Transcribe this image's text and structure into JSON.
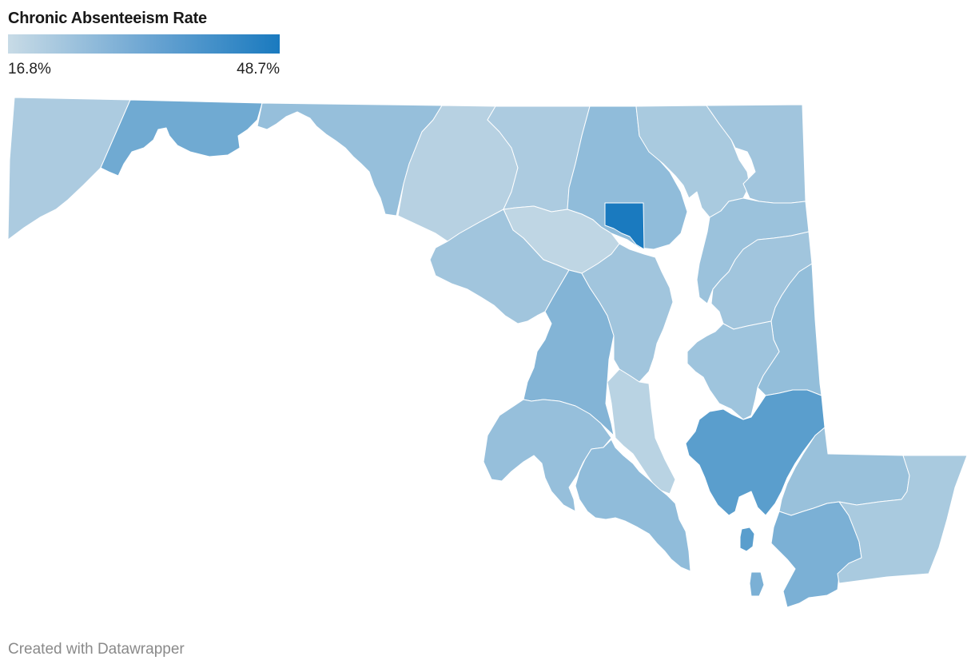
{
  "title": "Chronic Absenteeism Rate",
  "legend": {
    "min_label": "16.8%",
    "max_label": "48.7%",
    "min_value": 16.8,
    "max_value": 48.7,
    "min_color": "#c8dbe6",
    "max_color": "#1a7abf"
  },
  "footer": {
    "credit": "Created with Datawrapper"
  },
  "chart_data": {
    "type": "choropleth",
    "title": "Chronic Absenteeism Rate",
    "metric": "Chronic Absenteeism Rate",
    "unit": "%",
    "range": [
      16.8,
      48.7
    ],
    "regions": [
      {
        "id": "garrett",
        "value": 22.0
      },
      {
        "id": "allegany",
        "value": 33.0
      },
      {
        "id": "washington",
        "value": 26.0
      },
      {
        "id": "frederick",
        "value": 20.0
      },
      {
        "id": "carroll",
        "value": 22.0
      },
      {
        "id": "baltimore-county",
        "value": 27.0
      },
      {
        "id": "harford",
        "value": 22.5
      },
      {
        "id": "cecil",
        "value": 24.0
      },
      {
        "id": "baltimore-city",
        "value": 48.7
      },
      {
        "id": "howard",
        "value": 18.5
      },
      {
        "id": "montgomery",
        "value": 24.0
      },
      {
        "id": "prince-georges",
        "value": 29.5
      },
      {
        "id": "anne-arundel",
        "value": 24.0
      },
      {
        "id": "calvert",
        "value": 19.5
      },
      {
        "id": "charles",
        "value": 26.0
      },
      {
        "id": "st-marys",
        "value": 27.0
      },
      {
        "id": "kent",
        "value": 25.0
      },
      {
        "id": "queen-annes",
        "value": 24.0
      },
      {
        "id": "caroline",
        "value": 26.5
      },
      {
        "id": "talbot",
        "value": 24.5
      },
      {
        "id": "dorchester",
        "value": 37.0
      },
      {
        "id": "wicomico",
        "value": 25.5
      },
      {
        "id": "somerset",
        "value": 31.0
      },
      {
        "id": "worcester",
        "value": 22.5
      }
    ]
  }
}
